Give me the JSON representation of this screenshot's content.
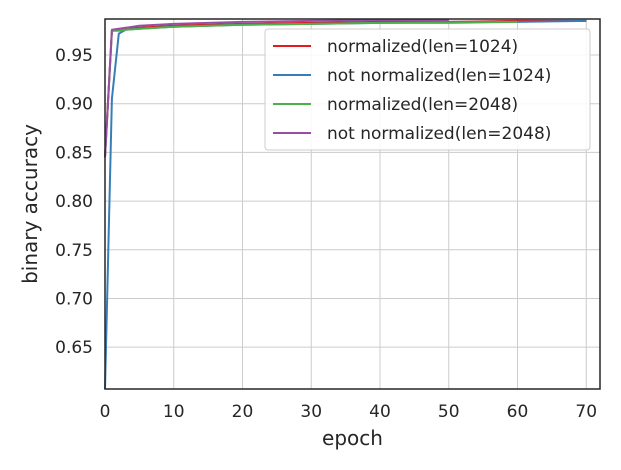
{
  "chart_data": {
    "type": "line",
    "title": "",
    "xlabel": "epoch",
    "ylabel": "binary accuracy",
    "xlim": [
      0,
      72
    ],
    "ylim": [
      0.607,
      0.987
    ],
    "x_ticks": [
      0,
      10,
      20,
      30,
      40,
      50,
      60,
      70
    ],
    "y_ticks": [
      0.65,
      0.7,
      0.75,
      0.8,
      0.85,
      0.9,
      0.95
    ],
    "x_tick_labels": [
      "0",
      "10",
      "20",
      "30",
      "40",
      "50",
      "60",
      "70"
    ],
    "y_tick_labels": [
      "0.65",
      "0.70",
      "0.75",
      "0.80",
      "0.85",
      "0.90",
      "0.95"
    ],
    "grid": true,
    "legend_position": "top-right",
    "series": [
      {
        "name": "normalized(len=1024)",
        "color": "#e41a1c",
        "x": [
          0,
          1,
          2,
          3,
          5,
          10,
          15,
          20,
          30,
          40,
          50,
          60,
          70
        ],
        "y": [
          0.845,
          0.975,
          0.976,
          0.977,
          0.978,
          0.98,
          0.981,
          0.982,
          0.983,
          0.984,
          0.984,
          0.985,
          0.985
        ]
      },
      {
        "name": "not normalized(len=1024)",
        "color": "#377eb8",
        "x": [
          0,
          1,
          2,
          3,
          5,
          10,
          15,
          20,
          30,
          40,
          50,
          60,
          70
        ],
        "y": [
          0.607,
          0.905,
          0.972,
          0.976,
          0.977,
          0.979,
          0.98,
          0.981,
          0.982,
          0.983,
          0.984,
          0.984,
          0.985
        ]
      },
      {
        "name": "normalized(len=2048)",
        "color": "#4daf4a",
        "x": [
          0,
          1,
          2,
          3,
          5,
          10,
          15,
          20,
          30,
          40,
          50,
          60
        ],
        "y": [
          0.845,
          0.975,
          0.975,
          0.976,
          0.977,
          0.979,
          0.98,
          0.981,
          0.982,
          0.983,
          0.983,
          0.984
        ]
      },
      {
        "name": "not normalized(len=2048)",
        "color": "#984ea3",
        "x": [
          0,
          1,
          2,
          3,
          5,
          10,
          15,
          20,
          30,
          40,
          50
        ],
        "y": [
          0.845,
          0.976,
          0.977,
          0.978,
          0.98,
          0.982,
          0.983,
          0.984,
          0.985,
          0.986,
          0.986
        ]
      }
    ]
  }
}
